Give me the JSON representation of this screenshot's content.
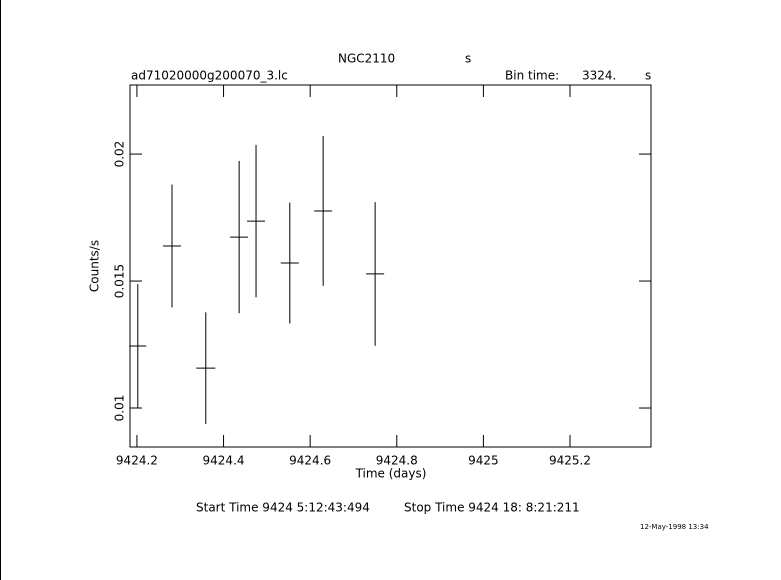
{
  "chart_data": {
    "type": "errorbar",
    "title": "NGC2110",
    "title_unit": "s",
    "subtitle": "ad71020000g200070_3.lc",
    "bin_time_label": "Bin time:",
    "bin_time": "3324.",
    "bin_time_unit": "s",
    "x_label": "Time (days)",
    "y_label": "Counts/s",
    "start_time": "Start Time  9424  5:12:43:494",
    "stop_time": "Stop Time  9424 18: 8:21:211",
    "timestamp": "12-May-1998 13:34",
    "xlim": [
      9424.184,
      9425.387
    ],
    "ylim": [
      0.008465,
      0.02272
    ],
    "xticks": [
      9424.2,
      9424.4,
      9424.6,
      9424.8,
      9425,
      9425.2
    ],
    "yticks": [
      0.01,
      0.015,
      0.02
    ],
    "color": "#000000",
    "x": [
      9424.202,
      9424.281,
      9424.359,
      9424.436,
      9424.475,
      9424.553,
      9424.63,
      9424.75
    ],
    "xerr": [
      0.0196,
      0.0208,
      0.022,
      0.0208,
      0.0208,
      0.0208,
      0.0208,
      0.0208
    ],
    "values": [
      0.01244,
      0.01638,
      0.01157,
      0.01673,
      0.01736,
      0.01571,
      0.01776,
      0.01528
    ],
    "yerr": [
      0.00244,
      0.00242,
      0.0022,
      0.003,
      0.003,
      0.00238,
      0.00295,
      0.00283
    ]
  }
}
